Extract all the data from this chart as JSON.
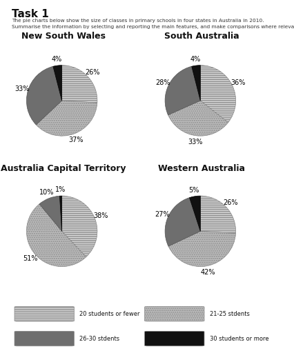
{
  "title": "Task 1",
  "subtitle_line1": "The pie charts below show the size of classes in primary schools in four states in Australia in 2010.",
  "subtitle_line2": "Summarise the information by selecting and reporting the main features, and make comparisons where relevant.",
  "charts": [
    {
      "title": "New South Wales",
      "values": [
        26,
        37,
        33,
        4
      ],
      "startangle": 90
    },
    {
      "title": "South Australia",
      "values": [
        36,
        33,
        28,
        4
      ],
      "startangle": 90
    },
    {
      "title": "Australia Capital Territory",
      "values": [
        38,
        51,
        10,
        1
      ],
      "startangle": 90
    },
    {
      "title": "Western Australia",
      "values": [
        26,
        42,
        27,
        5
      ],
      "startangle": 90
    }
  ],
  "categories": [
    "20 students or fewer",
    "21-25 stdents",
    "26-30 stdents",
    "30 students or more"
  ],
  "colors": [
    "#e0e0e0",
    "#c0c0c0",
    "#6e6e6e",
    "#111111"
  ],
  "hatches": [
    "------",
    "......",
    "",
    ""
  ],
  "label_fontsize": 7,
  "title_fontsize": 11,
  "chart_title_fontsize": 9,
  "subtitle_fontsize": 5.3,
  "background_color": "#ffffff"
}
